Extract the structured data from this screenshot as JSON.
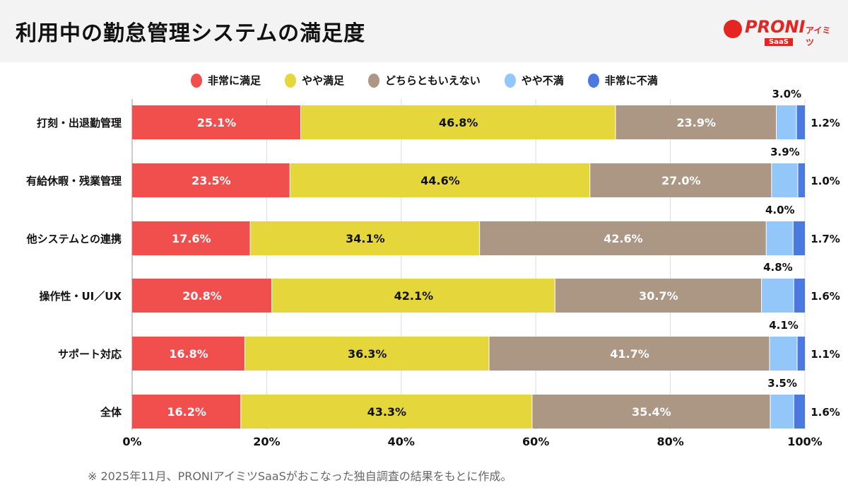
{
  "header": {
    "title": "利用中の勤怠管理システムの満足度",
    "logo_text": "PRONIアイミツ SaaS"
  },
  "colors": {
    "非常に満足": "#f14e4e",
    "やや満足": "#e5d73b",
    "どちらともいえない": "#ab9783",
    "やや不満": "#94c7f9",
    "非常に不満": "#4a7ae0"
  },
  "chart_data": {
    "type": "bar",
    "orientation": "horizontal-stacked-100",
    "categories": [
      "打刻・出退勤管理",
      "有給休暇・残業管理",
      "他システムとの連携",
      "操作性・UI／UX",
      "サポート対応",
      "全体"
    ],
    "series": [
      {
        "name": "非常に満足",
        "values": [
          25.1,
          23.5,
          17.6,
          20.8,
          16.8,
          16.2
        ]
      },
      {
        "name": "やや満足",
        "values": [
          46.8,
          44.6,
          34.1,
          42.1,
          36.3,
          43.3
        ]
      },
      {
        "name": "どちらともいえない",
        "values": [
          23.9,
          27.0,
          42.6,
          30.7,
          41.7,
          35.4
        ]
      },
      {
        "name": "やや不満",
        "values": [
          3.0,
          3.9,
          4.0,
          4.8,
          4.1,
          3.5
        ]
      },
      {
        "name": "非常に不満",
        "values": [
          1.2,
          1.0,
          1.7,
          1.6,
          1.1,
          1.6
        ]
      }
    ],
    "data_labels": [
      [
        "25.1%",
        "46.8%",
        "23.9%",
        "3.0%",
        "1.2%"
      ],
      [
        "23.5%",
        "44.6%",
        "27.0%",
        "3.9%",
        "1.0%"
      ],
      [
        "17.6%",
        "34.1%",
        "42.6%",
        "4.0%",
        "1.7%"
      ],
      [
        "20.8%",
        "42.1%",
        "30.7%",
        "4.8%",
        "1.6%"
      ],
      [
        "16.8%",
        "36.3%",
        "41.7%",
        "4.1%",
        "1.1%"
      ],
      [
        "16.2%",
        "43.3%",
        "35.4%",
        "3.5%",
        "1.6%"
      ]
    ],
    "xlim": [
      0,
      100
    ],
    "x_ticks": [
      "0%",
      "20%",
      "40%",
      "60%",
      "80%",
      "100%"
    ],
    "grid": true,
    "legend": "top"
  },
  "legend": [
    "非常に満足",
    "やや満足",
    "どちらともいえない",
    "やや不満",
    "非常に不満"
  ],
  "footnote": "※ 2025年11月、PRONIアイミツSaaSがおこなった独自調査の結果をもとに作成。"
}
